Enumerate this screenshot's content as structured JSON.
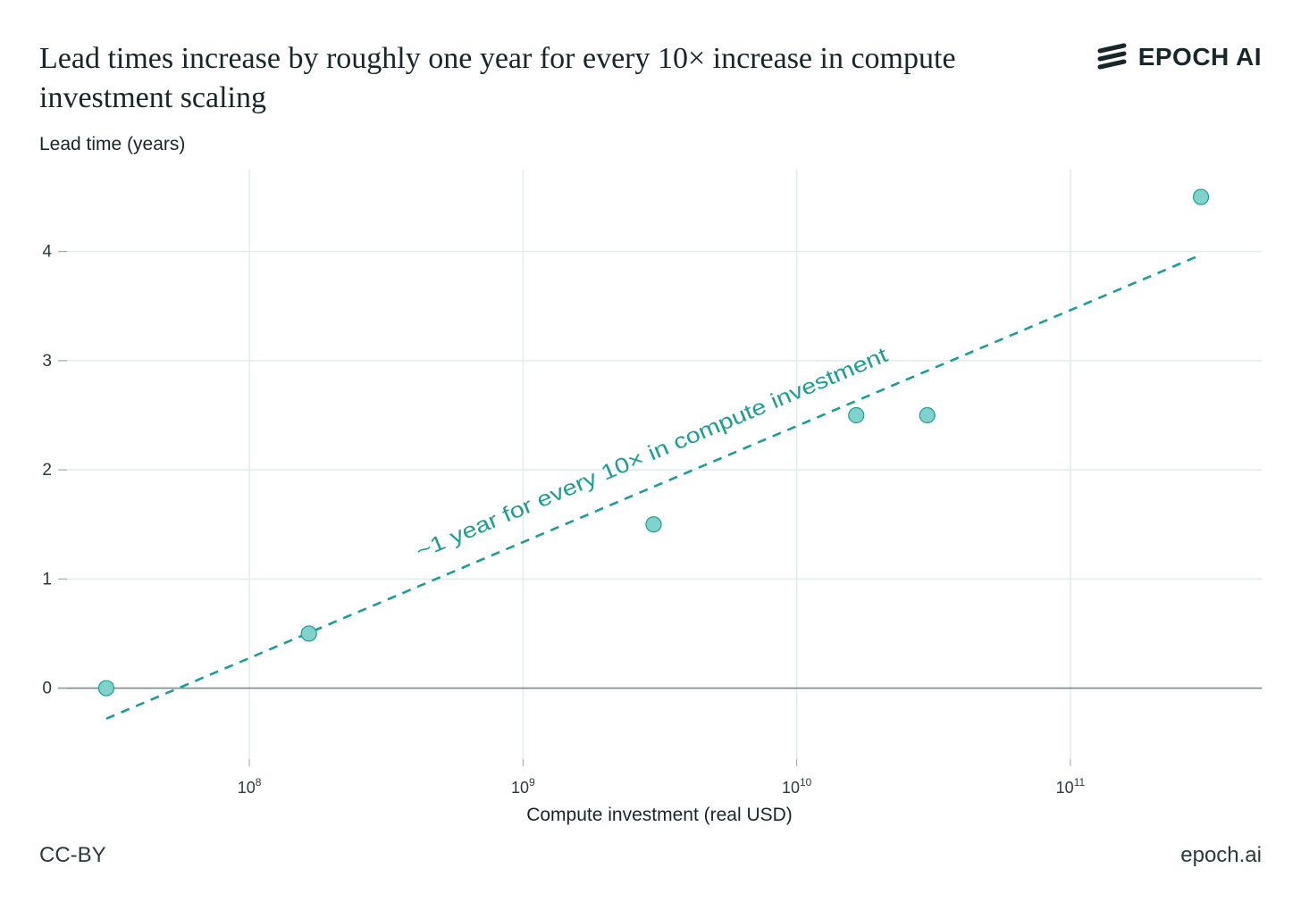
{
  "title": "Lead times increase by roughly one year for every 10× increase in compute investment scaling",
  "logo": {
    "icon": "epoch-stripes-icon",
    "text": "EPOCH AI"
  },
  "footer": {
    "license": "CC-BY",
    "site": "epoch.ai"
  },
  "colors": {
    "accent": "#1a9e96",
    "point_fill": "#7fd3cc",
    "grid": "#dfeceb",
    "zero_line": "#7b8a8c"
  },
  "chart_data": {
    "type": "scatter",
    "title": "Lead times increase by roughly one year for every 10× increase in compute investment scaling",
    "xlabel": "Compute investment (real USD)",
    "ylabel": "Lead time (years)",
    "xscale": "log",
    "xlim": [
      20000000,
      500000000000
    ],
    "ylim": [
      -0.65,
      4.75
    ],
    "xticks": [
      {
        "value": 100000000,
        "base": "10",
        "exp": "8"
      },
      {
        "value": 1000000000,
        "base": "10",
        "exp": "9"
      },
      {
        "value": 10000000000,
        "base": "10",
        "exp": "10"
      },
      {
        "value": 100000000000,
        "base": "10",
        "exp": "11"
      }
    ],
    "yticks": [
      0,
      1,
      2,
      3,
      4
    ],
    "points": [
      {
        "x": 30000000,
        "y": 0
      },
      {
        "x": 165000000,
        "y": 0.5
      },
      {
        "x": 3000000000,
        "y": 1.5
      },
      {
        "x": 16500000000,
        "y": 2.5
      },
      {
        "x": 30000000000,
        "y": 2.5
      },
      {
        "x": 300000000000,
        "y": 4.5
      }
    ],
    "trendline": {
      "x_start": 30000000,
      "x_end": 300000000000,
      "y_start": -0.28,
      "y_end": 3.97,
      "style": "dashed",
      "label": "~1 year for every 10× in compute investment"
    }
  }
}
